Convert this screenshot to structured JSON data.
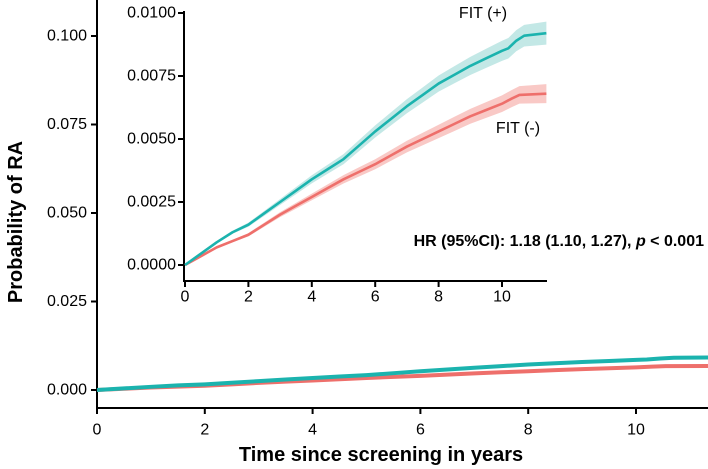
{
  "chart_data": {
    "type": "line",
    "description": "Cumulative probability of RA after FIT screening, with zoomed inset",
    "main_axes": {
      "xlabel": "Time since screening in years",
      "ylabel": "Probability of RA",
      "xlim": [
        0,
        11.4
      ],
      "ylim": [
        0,
        0.11
      ],
      "xticks": [
        "0",
        "2",
        "4",
        "6",
        "8",
        "10"
      ],
      "yticks": [
        "0.000",
        "0.025",
        "0.050",
        "0.075",
        "0.100"
      ],
      "grid": false
    },
    "inset_axes": {
      "xlim": [
        0,
        11.4
      ],
      "ylim": [
        0,
        0.0101
      ],
      "xticks": [
        "0",
        "2",
        "4",
        "6",
        "8",
        "10"
      ],
      "yticks": [
        "0.0000",
        "0.0025",
        "0.0050",
        "0.0075",
        "0.0100"
      ],
      "grid": false
    },
    "series": [
      {
        "key": "fit-positive",
        "name": "FIT (+)",
        "color": "#1BB3AE",
        "band_color": "#C3E8E6",
        "ci_halfwidth_per_year": 4e-05,
        "points": [
          [
            0,
            0
          ],
          [
            0.5,
            0.00045
          ],
          [
            1,
            0.0009
          ],
          [
            1.5,
            0.0013
          ],
          [
            2,
            0.0016
          ],
          [
            2.5,
            0.00205
          ],
          [
            3,
            0.0025
          ],
          [
            3.5,
            0.00295
          ],
          [
            4,
            0.0034
          ],
          [
            4.5,
            0.0038
          ],
          [
            5,
            0.0042
          ],
          [
            5.5,
            0.00475
          ],
          [
            6,
            0.0053
          ],
          [
            6.5,
            0.0058
          ],
          [
            7,
            0.0063
          ],
          [
            7.5,
            0.00675
          ],
          [
            8,
            0.0072
          ],
          [
            8.5,
            0.00755
          ],
          [
            9,
            0.0079
          ],
          [
            9.5,
            0.0082
          ],
          [
            10,
            0.0085
          ],
          [
            10.2,
            0.0086
          ],
          [
            10.45,
            0.0089
          ],
          [
            10.7,
            0.0091
          ],
          [
            11.4,
            0.0092
          ]
        ]
      },
      {
        "key": "fit-negative",
        "name": "FIT (-)",
        "color": "#EE6F6B",
        "band_color": "#F9C9C6",
        "ci_halfwidth_per_year": 3.3e-05,
        "points": [
          [
            0,
            0
          ],
          [
            0.5,
            0.00035
          ],
          [
            1,
            0.0007
          ],
          [
            1.5,
            0.00095
          ],
          [
            2,
            0.0012
          ],
          [
            2.5,
            0.0016
          ],
          [
            3,
            0.002
          ],
          [
            3.5,
            0.00235
          ],
          [
            4,
            0.0027
          ],
          [
            4.5,
            0.00305
          ],
          [
            5,
            0.0034
          ],
          [
            5.5,
            0.0037
          ],
          [
            6,
            0.004
          ],
          [
            6.5,
            0.00435
          ],
          [
            7,
            0.0047
          ],
          [
            7.5,
            0.005
          ],
          [
            8,
            0.0053
          ],
          [
            8.5,
            0.0056
          ],
          [
            9,
            0.0059
          ],
          [
            9.5,
            0.00615
          ],
          [
            10,
            0.0064
          ],
          [
            10.3,
            0.0066
          ],
          [
            10.55,
            0.00675
          ],
          [
            11.4,
            0.0068
          ]
        ]
      }
    ],
    "annotation_text": "HR (95%CI): 1.18 (1.10, 1.27), p < 0.001",
    "annotation_parts": {
      "prefix": "HR (95%CI): 1.18 (1.10, 1.27), ",
      "p_symbol": "p",
      "suffix": " < 0.001"
    },
    "legend_position": "on-plot labels"
  }
}
